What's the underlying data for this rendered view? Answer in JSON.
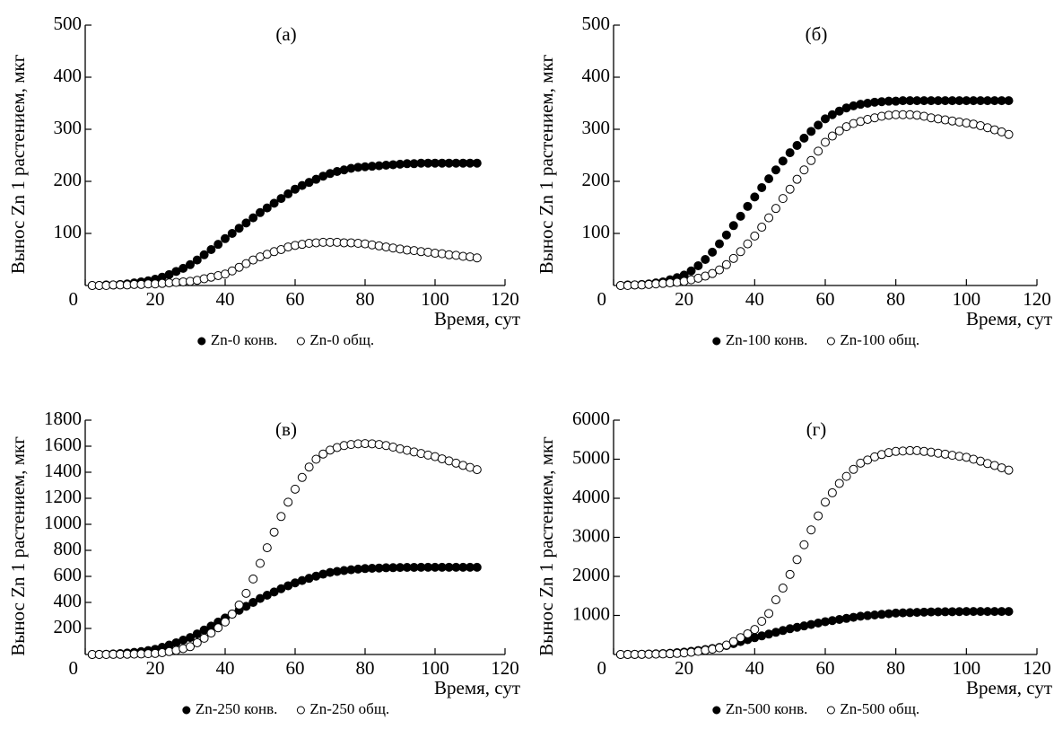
{
  "chart_data": [
    {
      "type": "scatter",
      "title": "(а)",
      "xlabel": "Время, сут",
      "ylabel": "Вынос Zn 1 растением, мкг",
      "x": [
        2,
        4,
        6,
        8,
        10,
        12,
        14,
        16,
        18,
        20,
        22,
        24,
        26,
        28,
        30,
        32,
        34,
        36,
        38,
        40,
        42,
        44,
        46,
        48,
        50,
        52,
        54,
        56,
        58,
        60,
        62,
        64,
        66,
        68,
        70,
        72,
        74,
        76,
        78,
        80,
        82,
        84,
        86,
        88,
        90,
        92,
        94,
        96,
        98,
        100,
        102,
        104,
        106,
        108,
        110,
        112
      ],
      "xlim": [
        0,
        120
      ],
      "xticks": [
        0,
        20,
        40,
        60,
        80,
        100,
        120
      ],
      "ylim": [
        0,
        500
      ],
      "yticks": [
        100,
        200,
        300,
        400,
        500
      ],
      "series": [
        {
          "name": "Zn-0 конв.",
          "color": "#000000",
          "marker": "filled",
          "values": [
            0,
            0,
            1,
            1,
            2,
            3,
            5,
            7,
            9,
            12,
            16,
            21,
            27,
            33,
            40,
            49,
            59,
            69,
            79,
            90,
            100,
            110,
            120,
            130,
            140,
            149,
            158,
            167,
            176,
            185,
            192,
            198,
            204,
            210,
            215,
            219,
            222,
            225,
            227,
            228,
            229,
            230,
            231,
            232,
            233,
            234,
            234,
            235,
            235,
            235,
            235,
            235,
            235,
            235,
            235,
            235
          ]
        },
        {
          "name": "Zn-0 общ.",
          "color": "#000000",
          "marker": "open",
          "values": [
            0,
            0,
            0,
            1,
            1,
            1,
            2,
            2,
            3,
            3,
            4,
            5,
            6,
            7,
            8,
            10,
            13,
            16,
            19,
            22,
            28,
            35,
            42,
            49,
            55,
            60,
            65,
            69,
            74,
            77,
            79,
            81,
            82,
            83,
            83,
            83,
            82,
            82,
            81,
            80,
            78,
            76,
            74,
            72,
            70,
            68,
            67,
            65,
            64,
            62,
            61,
            59,
            58,
            56,
            55,
            53
          ]
        }
      ]
    },
    {
      "type": "scatter",
      "title": "(б)",
      "xlabel": "Время, сут",
      "ylabel": "Вынос Zn 1 растением, мкг",
      "x": [
        2,
        4,
        6,
        8,
        10,
        12,
        14,
        16,
        18,
        20,
        22,
        24,
        26,
        28,
        30,
        32,
        34,
        36,
        38,
        40,
        42,
        44,
        46,
        48,
        50,
        52,
        54,
        56,
        58,
        60,
        62,
        64,
        66,
        68,
        70,
        72,
        74,
        76,
        78,
        80,
        82,
        84,
        86,
        88,
        90,
        92,
        94,
        96,
        98,
        100,
        102,
        104,
        106,
        108,
        110,
        112
      ],
      "xlim": [
        0,
        120
      ],
      "xticks": [
        0,
        20,
        40,
        60,
        80,
        100,
        120
      ],
      "ylim": [
        0,
        500
      ],
      "yticks": [
        100,
        200,
        300,
        400,
        500
      ],
      "series": [
        {
          "name": "Zn-100 конв.",
          "color": "#000000",
          "marker": "filled",
          "values": [
            0,
            1,
            1,
            2,
            3,
            5,
            7,
            11,
            15,
            20,
            28,
            38,
            50,
            64,
            80,
            97,
            115,
            133,
            152,
            170,
            188,
            205,
            222,
            239,
            255,
            269,
            283,
            296,
            308,
            320,
            328,
            335,
            341,
            345,
            348,
            350,
            352,
            353,
            354,
            354,
            355,
            355,
            355,
            355,
            355,
            355,
            355,
            355,
            355,
            355,
            355,
            355,
            355,
            355,
            355,
            355
          ]
        },
        {
          "name": "Zn-100 общ.",
          "color": "#000000",
          "marker": "open",
          "values": [
            0,
            0,
            1,
            1,
            2,
            3,
            4,
            5,
            6,
            8,
            11,
            14,
            18,
            23,
            30,
            40,
            52,
            65,
            80,
            95,
            112,
            130,
            148,
            167,
            185,
            204,
            222,
            240,
            258,
            275,
            287,
            297,
            305,
            311,
            315,
            319,
            322,
            325,
            327,
            328,
            328,
            328,
            327,
            325,
            322,
            320,
            318,
            316,
            314,
            312,
            310,
            307,
            303,
            299,
            295,
            290
          ]
        }
      ]
    },
    {
      "type": "scatter",
      "title": "(в)",
      "xlabel": "Время, сут",
      "ylabel": "Вынос Zn 1 растением, мкг",
      "x": [
        2,
        4,
        6,
        8,
        10,
        12,
        14,
        16,
        18,
        20,
        22,
        24,
        26,
        28,
        30,
        32,
        34,
        36,
        38,
        40,
        42,
        44,
        46,
        48,
        50,
        52,
        54,
        56,
        58,
        60,
        62,
        64,
        66,
        68,
        70,
        72,
        74,
        76,
        78,
        80,
        82,
        84,
        86,
        88,
        90,
        92,
        94,
        96,
        98,
        100,
        102,
        104,
        106,
        108,
        110,
        112
      ],
      "xlim": [
        0,
        120
      ],
      "xticks": [
        0,
        20,
        40,
        60,
        80,
        100,
        120
      ],
      "ylim": [
        0,
        1800
      ],
      "yticks": [
        200,
        400,
        600,
        800,
        1000,
        1200,
        1400,
        1600,
        1800
      ],
      "series": [
        {
          "name": "Zn-250 конв.",
          "color": "#000000",
          "marker": "filled",
          "values": [
            0,
            1,
            2,
            4,
            7,
            11,
            16,
            22,
            30,
            40,
            55,
            72,
            90,
            110,
            130,
            158,
            188,
            218,
            249,
            280,
            310,
            340,
            370,
            400,
            430,
            455,
            480,
            505,
            528,
            550,
            568,
            585,
            602,
            617,
            630,
            638,
            645,
            651,
            656,
            660,
            662,
            664,
            666,
            667,
            668,
            669,
            669,
            670,
            670,
            670,
            670,
            670,
            670,
            670,
            670,
            670
          ]
        },
        {
          "name": "Zn-250 общ.",
          "color": "#000000",
          "marker": "open",
          "values": [
            0,
            0,
            0,
            1,
            1,
            2,
            3,
            4,
            6,
            8,
            14,
            22,
            32,
            45,
            60,
            90,
            125,
            165,
            205,
            250,
            310,
            380,
            470,
            580,
            700,
            820,
            940,
            1060,
            1170,
            1270,
            1360,
            1440,
            1500,
            1540,
            1570,
            1590,
            1605,
            1613,
            1618,
            1620,
            1618,
            1613,
            1605,
            1593,
            1580,
            1568,
            1556,
            1544,
            1532,
            1520,
            1503,
            1487,
            1470,
            1453,
            1437,
            1420
          ]
        }
      ]
    },
    {
      "type": "scatter",
      "title": "(г)",
      "xlabel": "Время, сут",
      "ylabel": "Вынос Zn 1 растением, мкг",
      "x": [
        2,
        4,
        6,
        8,
        10,
        12,
        14,
        16,
        18,
        20,
        22,
        24,
        26,
        28,
        30,
        32,
        34,
        36,
        38,
        40,
        42,
        44,
        46,
        48,
        50,
        52,
        54,
        56,
        58,
        60,
        62,
        64,
        66,
        68,
        70,
        72,
        74,
        76,
        78,
        80,
        82,
        84,
        86,
        88,
        90,
        92,
        94,
        96,
        98,
        100,
        102,
        104,
        106,
        108,
        110,
        112
      ],
      "xlim": [
        0,
        120
      ],
      "xticks": [
        0,
        20,
        40,
        60,
        80,
        100,
        120
      ],
      "ylim": [
        0,
        6000
      ],
      "yticks": [
        1000,
        2000,
        3000,
        4000,
        5000,
        6000
      ],
      "series": [
        {
          "name": "Zn-500 конв.",
          "color": "#000000",
          "marker": "filled",
          "values": [
            0,
            2,
            4,
            7,
            11,
            16,
            23,
            32,
            45,
            60,
            80,
            102,
            127,
            153,
            180,
            228,
            280,
            330,
            380,
            430,
            476,
            522,
            568,
            614,
            660,
            696,
            732,
            768,
            804,
            840,
            868,
            896,
            924,
            952,
            980,
            996,
            1012,
            1028,
            1044,
            1060,
            1066,
            1072,
            1078,
            1084,
            1090,
            1092,
            1094,
            1096,
            1098,
            1100,
            1100,
            1100,
            1100,
            1100,
            1100,
            1100
          ]
        },
        {
          "name": "Zn-500 общ.",
          "color": "#000000",
          "marker": "open",
          "values": [
            0,
            1,
            2,
            4,
            6,
            9,
            13,
            19,
            28,
            40,
            58,
            80,
            108,
            137,
            170,
            240,
            330,
            430,
            530,
            640,
            850,
            1050,
            1400,
            1700,
            2050,
            2430,
            2810,
            3190,
            3550,
            3900,
            4140,
            4380,
            4560,
            4740,
            4900,
            4980,
            5060,
            5120,
            5170,
            5200,
            5210,
            5220,
            5220,
            5200,
            5180,
            5155,
            5130,
            5100,
            5075,
            5050,
            5000,
            4950,
            4890,
            4840,
            4780,
            4720
          ]
        }
      ]
    }
  ]
}
